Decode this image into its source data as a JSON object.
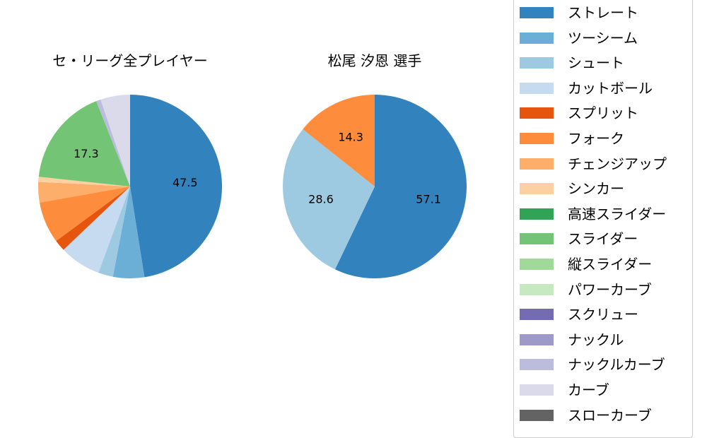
{
  "chart_data": [
    {
      "type": "pie",
      "title": "セ・リーグ全プレイヤー",
      "labels": [
        "ストレート",
        "ツーシーム",
        "シュート",
        "カットボール",
        "スプリット",
        "フォーク",
        "チェンジアップ",
        "シンカー",
        "スライダー",
        "ナックルカーブ",
        "カーブ"
      ],
      "values": [
        47.5,
        5.5,
        2.6,
        7.3,
        2.0,
        7.3,
        3.6,
        0.9,
        17.3,
        0.8,
        5.2
      ],
      "colors": [
        "#3182bd",
        "#6baed6",
        "#9ecae1",
        "#c6dbef",
        "#e6550d",
        "#fd8d3c",
        "#fdae6b",
        "#fdd0a2",
        "#74c476",
        "#bcbddc",
        "#dadaeb"
      ],
      "shown_labels": [
        "47.5",
        "",
        "",
        "",
        "",
        "",
        "",
        "",
        "17.3",
        "",
        ""
      ],
      "startangle": 90,
      "direction": "clockwise"
    },
    {
      "type": "pie",
      "title": "松尾 汐恩  選手",
      "labels": [
        "ストレート",
        "シュート",
        "フォーク"
      ],
      "values": [
        57.1,
        28.6,
        14.3
      ],
      "colors": [
        "#3182bd",
        "#9ecae1",
        "#fd8d3c"
      ],
      "shown_labels": [
        "57.1",
        "28.6",
        "14.3"
      ],
      "startangle": 90,
      "direction": "clockwise"
    }
  ],
  "titles": {
    "left": "セ・リーグ全プレイヤー",
    "right": "松尾 汐恩  選手"
  },
  "legend": {
    "position": "right",
    "items": [
      {
        "label": "ストレート",
        "color": "#3182bd"
      },
      {
        "label": "ツーシーム",
        "color": "#6baed6"
      },
      {
        "label": "シュート",
        "color": "#9ecae1"
      },
      {
        "label": "カットボール",
        "color": "#c6dbef"
      },
      {
        "label": "スプリット",
        "color": "#e6550d"
      },
      {
        "label": "フォーク",
        "color": "#fd8d3c"
      },
      {
        "label": "チェンジアップ",
        "color": "#fdae6b"
      },
      {
        "label": "シンカー",
        "color": "#fdd0a2"
      },
      {
        "label": "高速スライダー",
        "color": "#31a354"
      },
      {
        "label": "スライダー",
        "color": "#74c476"
      },
      {
        "label": "縦スライダー",
        "color": "#a1d99b"
      },
      {
        "label": "パワーカーブ",
        "color": "#c7e9c0"
      },
      {
        "label": "スクリュー",
        "color": "#756bb1"
      },
      {
        "label": "ナックル",
        "color": "#9e9ac8"
      },
      {
        "label": "ナックルカーブ",
        "color": "#bcbddc"
      },
      {
        "label": "カーブ",
        "color": "#dadaeb"
      },
      {
        "label": "スローカーブ",
        "color": "#636363"
      }
    ]
  }
}
